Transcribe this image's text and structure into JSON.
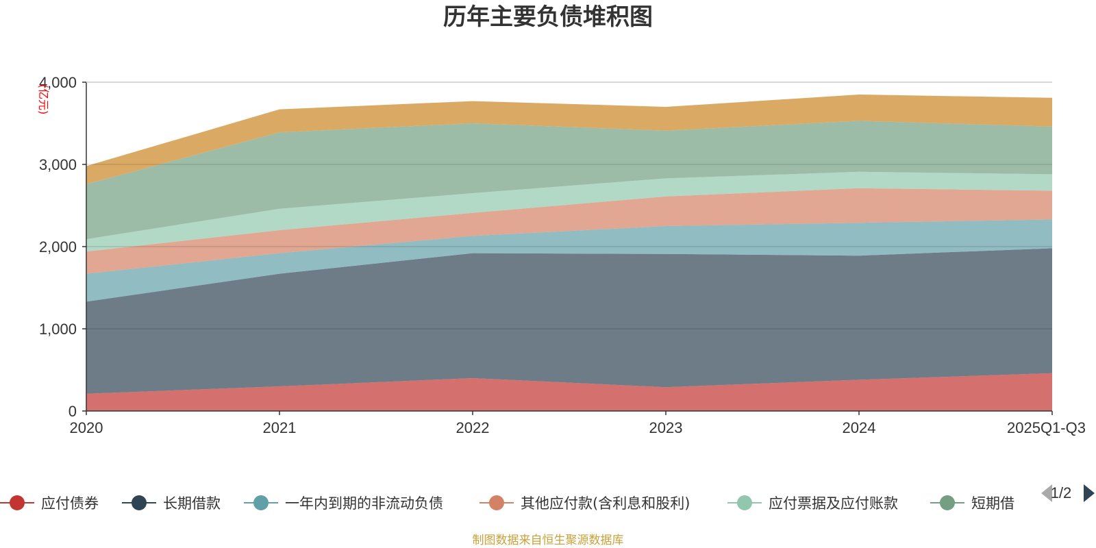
{
  "chart_data": {
    "type": "area",
    "stacked": true,
    "title": "历年主要负债堆积图",
    "unit_label": "(亿元)",
    "categories": [
      "2020",
      "2021",
      "2022",
      "2023",
      "2024",
      "2025Q1-Q3"
    ],
    "ylim": [
      0,
      4000
    ],
    "yticks": [
      0,
      1000,
      2000,
      3000,
      4000
    ],
    "ytick_labels": [
      "0",
      "1,000",
      "2,000",
      "3,000",
      "4,000"
    ],
    "grid": true,
    "series": [
      {
        "name": "应付债券",
        "color": "#c23531",
        "values": [
          210,
          300,
          400,
          290,
          380,
          460
        ]
      },
      {
        "name": "长期借款",
        "color": "#2f4554",
        "values": [
          1120,
          1370,
          1520,
          1620,
          1510,
          1520
        ]
      },
      {
        "name": "一年内到期的非流动负债",
        "color": "#61a0a8",
        "values": [
          340,
          250,
          210,
          340,
          400,
          350
        ]
      },
      {
        "name": "其他应付款(含利息和股利)",
        "color": "#d48265",
        "values": [
          270,
          280,
          280,
          360,
          420,
          350
        ]
      },
      {
        "name": "应付票据及应付账款",
        "color": "#91c7ae",
        "values": [
          150,
          260,
          240,
          220,
          200,
          200
        ]
      },
      {
        "name": "短期借款",
        "color": "#749f83",
        "values": [
          670,
          930,
          850,
          580,
          620,
          580
        ]
      },
      {
        "name": "",
        "color": "#ca8622",
        "values": [
          220,
          280,
          270,
          290,
          320,
          350
        ]
      }
    ],
    "legend": {
      "placement": "bottom",
      "visible_items": [
        "应付债券",
        "长期借款",
        "一年内到期的非流动负债",
        "其他应付款(含利息和股利)",
        "应付票据及应付账款",
        "短期借"
      ],
      "page": "1/2"
    }
  },
  "footer": {
    "source": "制图数据来自恒生聚源数据库"
  }
}
